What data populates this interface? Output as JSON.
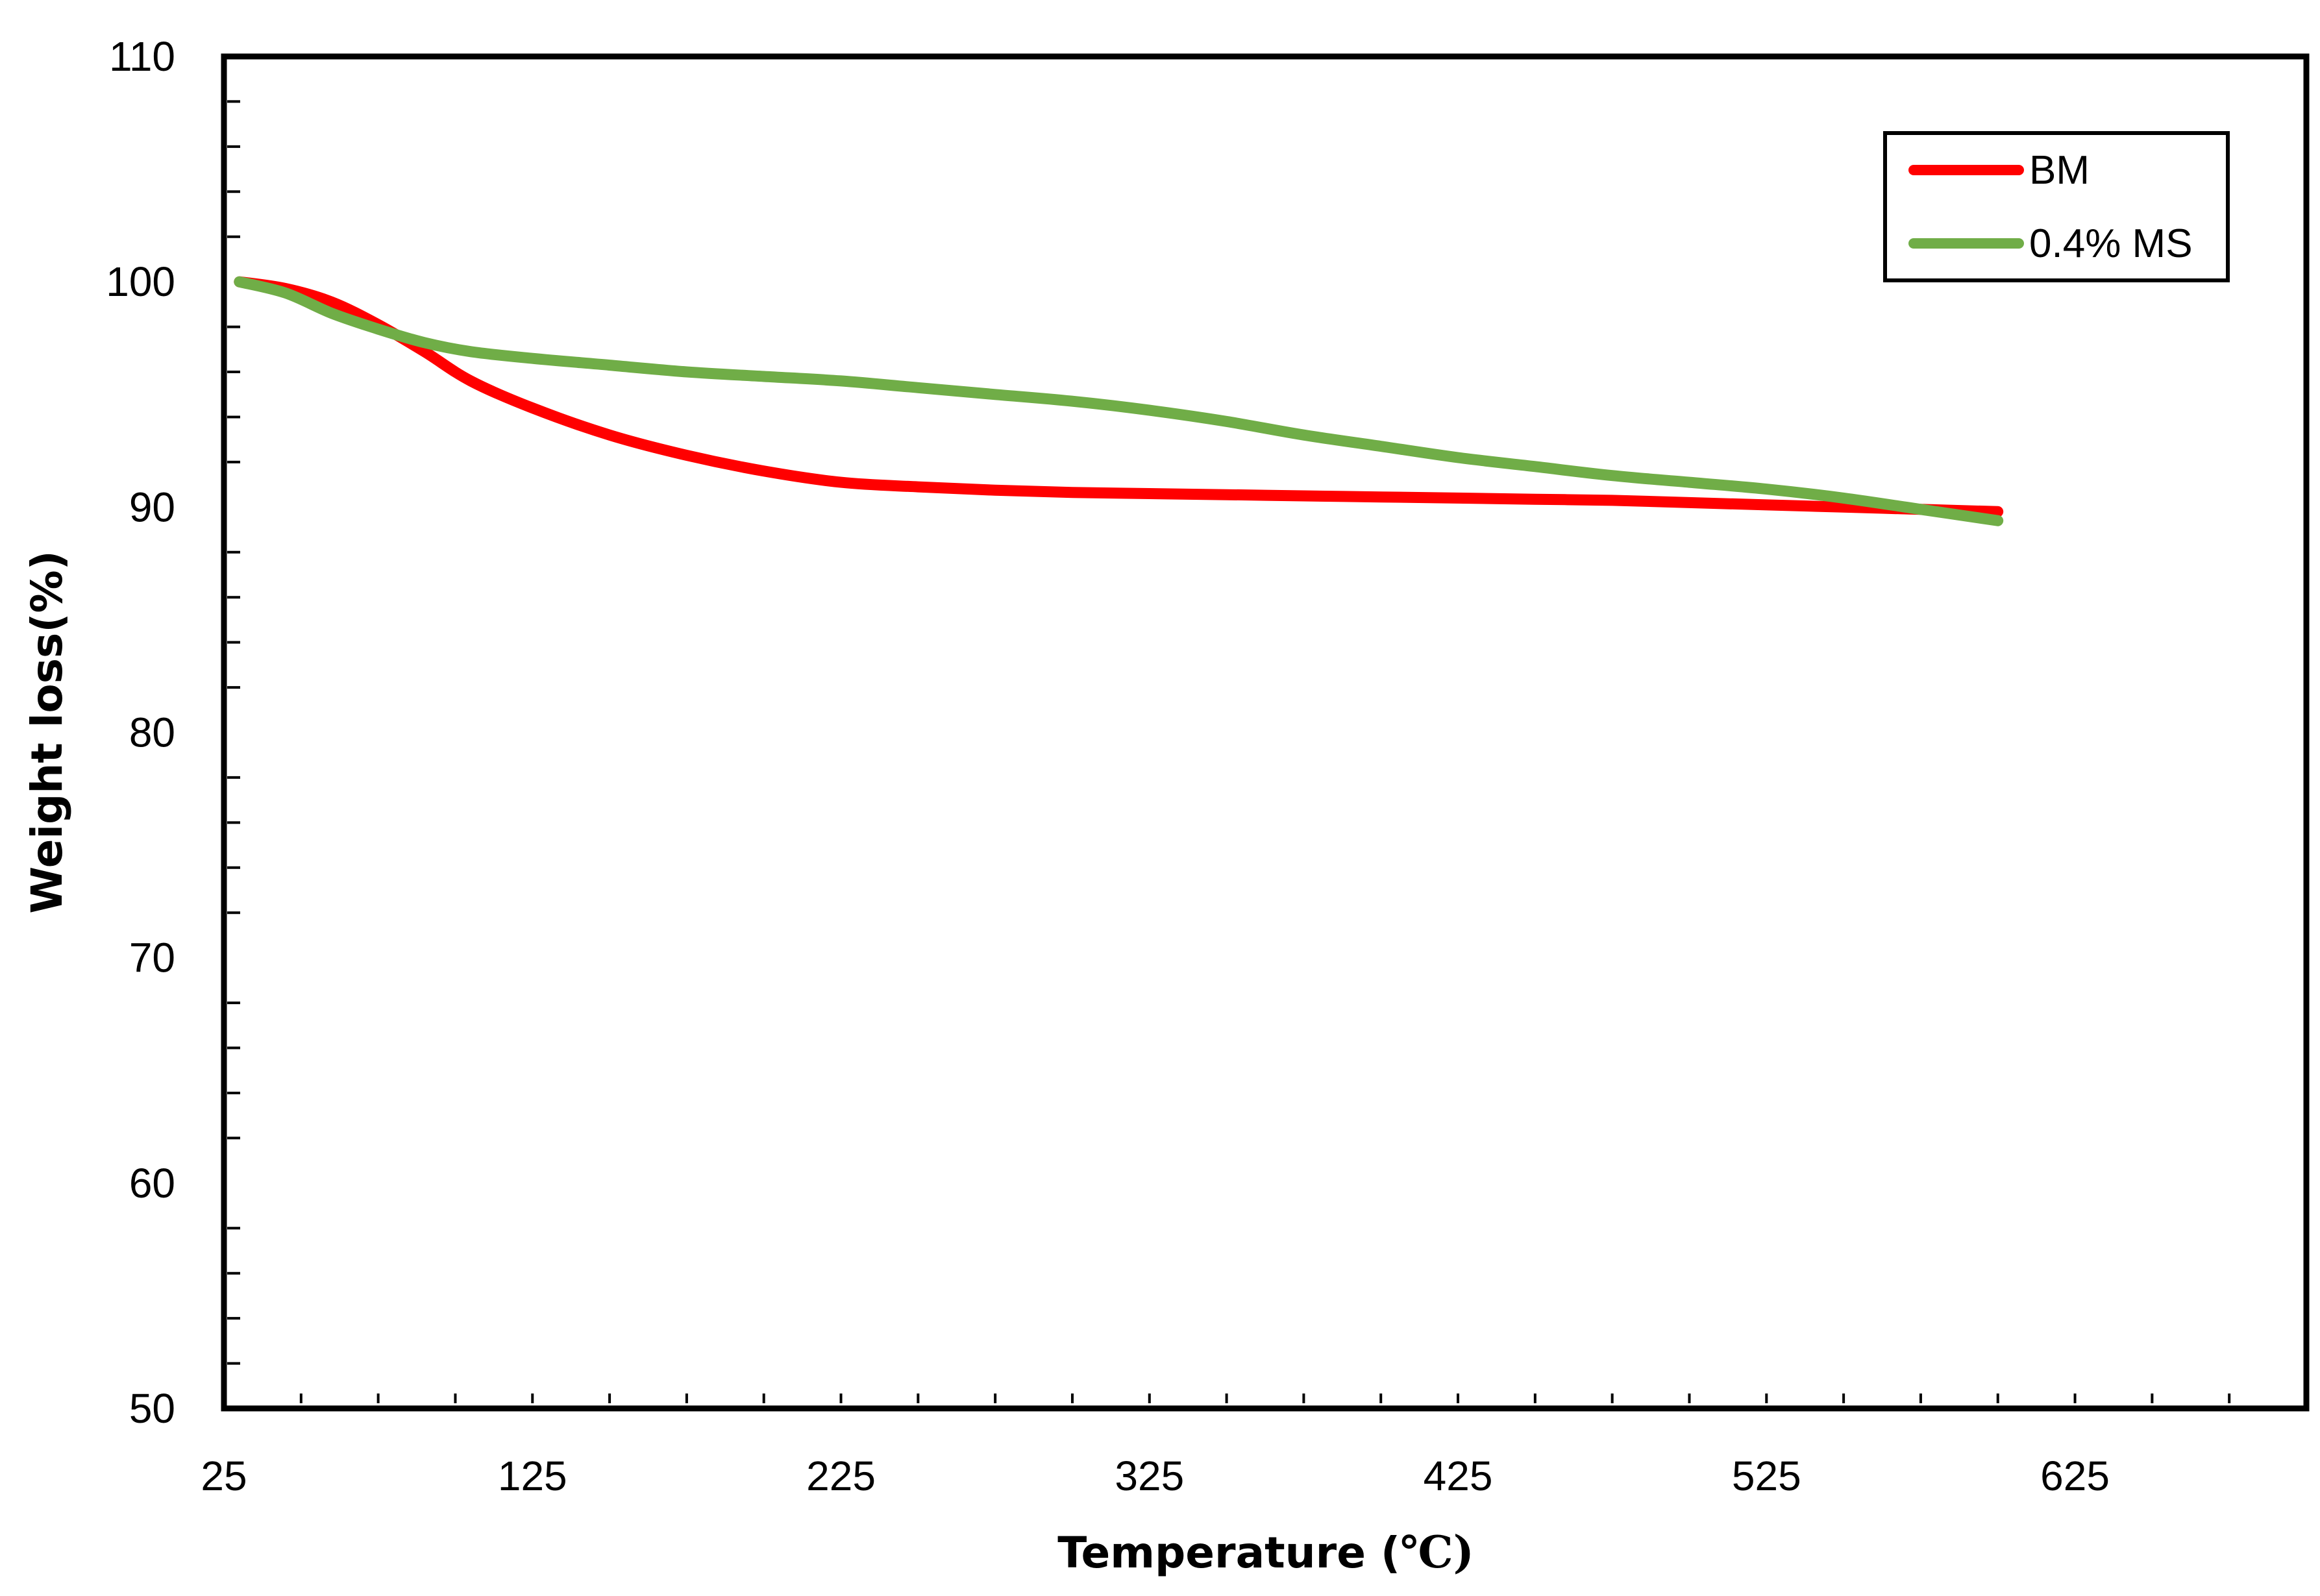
{
  "chart_data": {
    "type": "line",
    "title": "",
    "xlabel": "Temperature (",
    "xlabel_unit": "℃)",
    "ylabel": "Weight loss(%)",
    "xlim": [
      25,
      700
    ],
    "ylim": [
      50,
      110
    ],
    "x_ticks": [
      25,
      125,
      225,
      325,
      425,
      525,
      625
    ],
    "y_ticks": [
      50,
      60,
      70,
      80,
      90,
      100,
      110
    ],
    "x_tick_labels": [
      "25",
      "125",
      "225",
      "325",
      "425",
      "525",
      "625"
    ],
    "y_tick_labels": [
      "50",
      "60",
      "70",
      "80",
      "90",
      "100",
      "110"
    ],
    "legend_position": "top-right",
    "series": [
      {
        "name": "BM",
        "color": "#ff0000",
        "x": [
          30,
          45,
          60,
          75,
          90,
          105,
          125,
          150,
          175,
          200,
          225,
          250,
          275,
          300,
          325,
          350,
          375,
          400,
          425,
          450,
          475,
          500,
          525,
          550,
          575,
          600
        ],
        "y": [
          100,
          99.7,
          99.1,
          98.1,
          96.9,
          95.6,
          94.4,
          93.2,
          92.3,
          91.6,
          91.1,
          90.9,
          90.75,
          90.65,
          90.6,
          90.55,
          90.5,
          90.45,
          90.4,
          90.35,
          90.3,
          90.2,
          90.1,
          90.0,
          89.9,
          89.8
        ]
      },
      {
        "name": "0.4% MS",
        "color": "#70ad47",
        "x": [
          30,
          45,
          60,
          75,
          90,
          105,
          125,
          150,
          175,
          200,
          225,
          250,
          275,
          300,
          325,
          350,
          375,
          400,
          425,
          450,
          475,
          500,
          525,
          550,
          575,
          600
        ],
        "y": [
          100,
          99.5,
          98.6,
          97.9,
          97.3,
          96.9,
          96.6,
          96.3,
          96.0,
          95.8,
          95.6,
          95.3,
          95.0,
          94.7,
          94.3,
          93.8,
          93.2,
          92.7,
          92.2,
          91.8,
          91.4,
          91.1,
          90.8,
          90.4,
          89.9,
          89.4
        ]
      }
    ]
  }
}
